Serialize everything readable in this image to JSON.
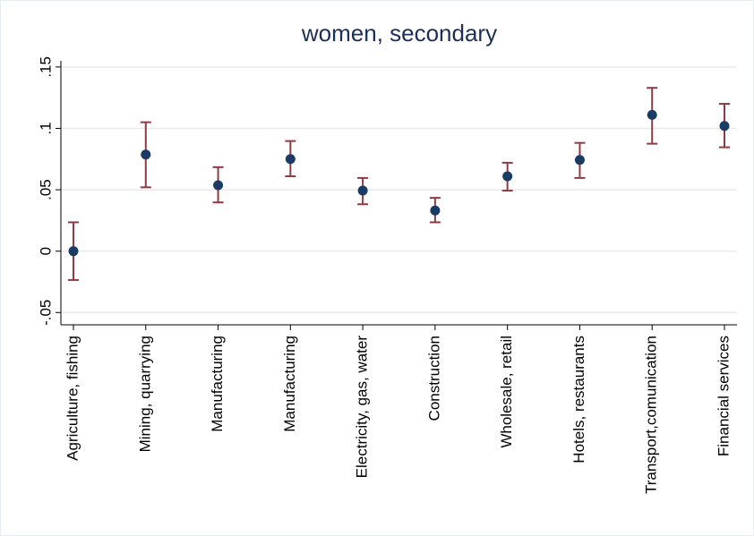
{
  "chart_data": {
    "type": "errorbar",
    "title": "women, secondary",
    "categories": [
      "Agriculture, fishing",
      "Mining, quarrying",
      "Manufacturing",
      "Manufacturing",
      "Electricity, gas, water",
      "Construction",
      "Wholesale, retail",
      "Hotels, restaurants",
      "Transport,comunication",
      "Financial services"
    ],
    "series": [
      {
        "color": "#1a3b63",
        "bar_color": "#8e3b44",
        "values": [
          0,
          0.0787,
          0.0537,
          0.075,
          0.0493,
          0.0331,
          0.061,
          0.0743,
          0.111,
          0.102
        ],
        "lower": [
          -0.0235,
          0.052,
          0.0397,
          0.061,
          0.0382,
          0.0235,
          0.0493,
          0.0596,
          0.0875,
          0.0846
        ],
        "upper": [
          0.0235,
          0.105,
          0.0684,
          0.0897,
          0.0596,
          0.0434,
          0.072,
          0.0882,
          0.133,
          0.12
        ]
      }
    ],
    "ylim": [
      -0.06,
      0.155
    ],
    "yticks": [
      {
        "value": -0.05,
        "label": "-.05"
      },
      0,
      {
        "value": 0.05,
        "label": ".05"
      },
      {
        "value": 0.1,
        "label": ".1"
      },
      {
        "value": 0.15,
        "label": ".15"
      }
    ],
    "grid": true
  }
}
